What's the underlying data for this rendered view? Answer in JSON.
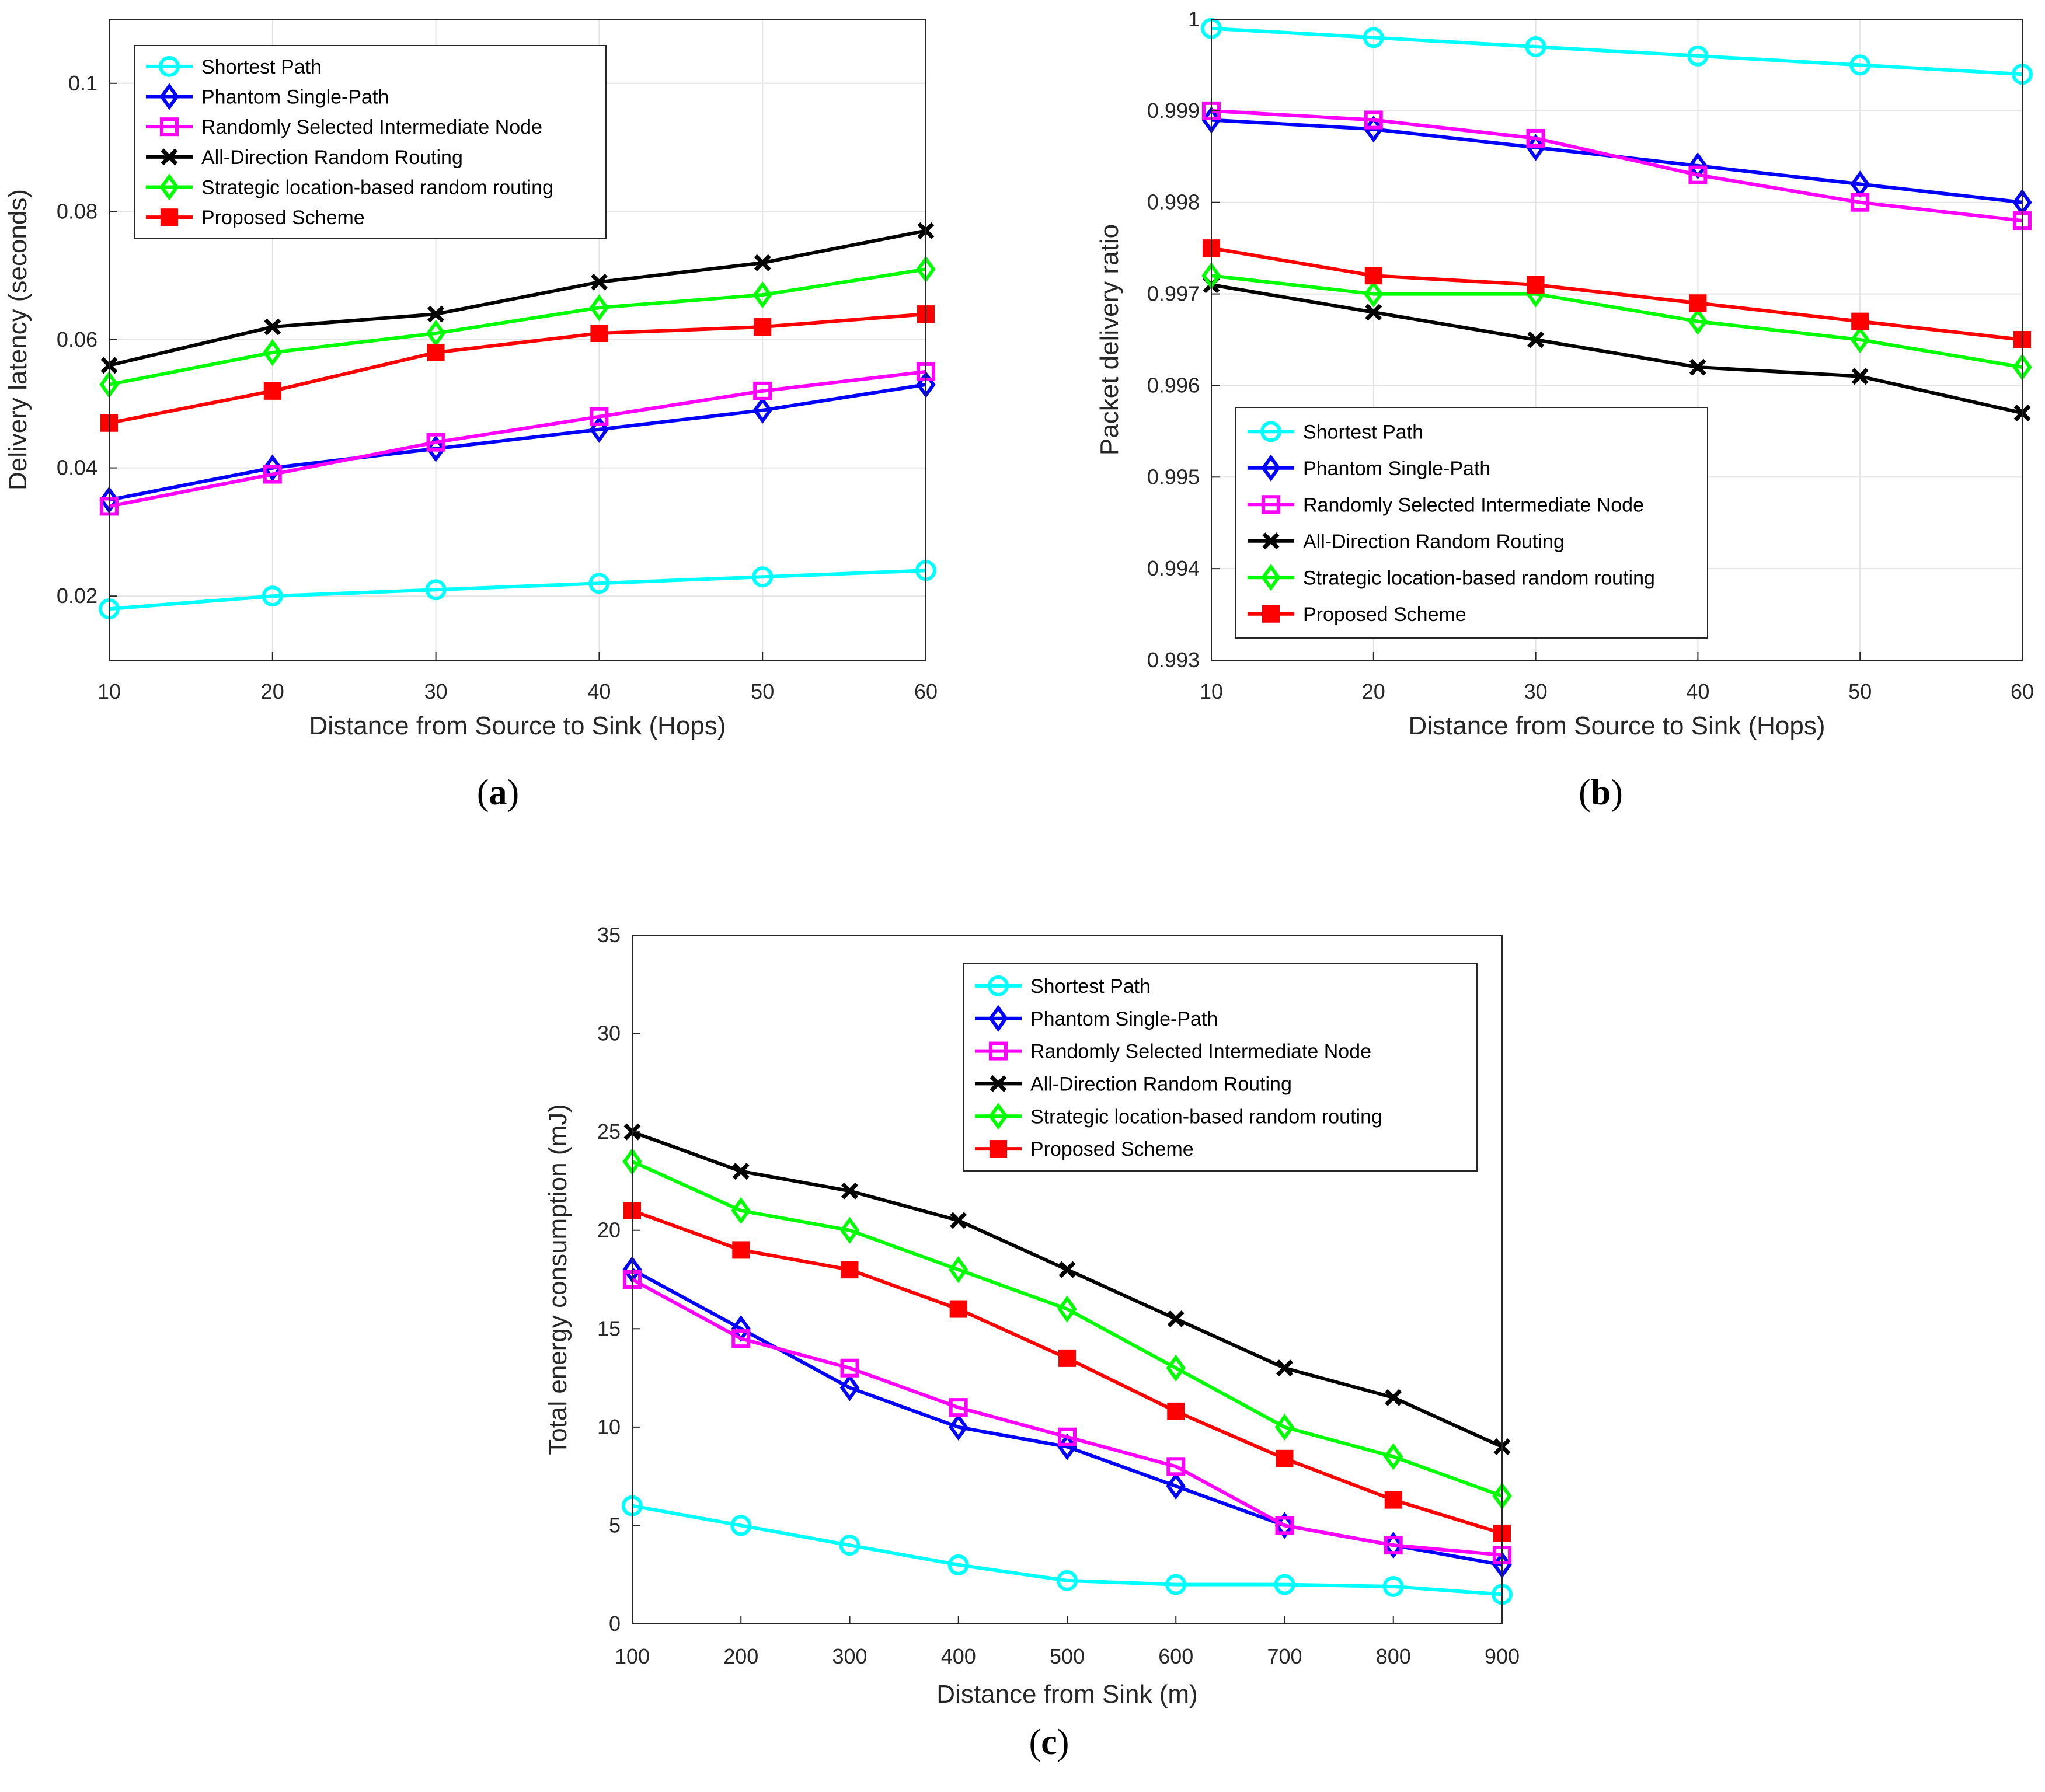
{
  "styles": {
    "Shortest Path": {
      "color": "#00ffff",
      "marker": "circle"
    },
    "Phantom Single-Path": {
      "color": "#0000ff",
      "marker": "diamond"
    },
    "Randomly Selected Intermediate Node": {
      "color": "#ff00ff",
      "marker": "square"
    },
    "All-Direction Random Routing": {
      "color": "#000000",
      "marker": "x"
    },
    "Strategic location-based random routing": {
      "color": "#00ff00",
      "marker": "diamond"
    },
    "Proposed Scheme": {
      "color": "#ff0000",
      "marker": "square-filled"
    }
  },
  "chart_data": [
    {
      "id": "a",
      "type": "line",
      "caption": "a",
      "xlabel": "Distance from Source to Sink (Hops)",
      "ylabel": "Delivery latency (seconds)",
      "x": [
        10,
        20,
        30,
        40,
        50,
        60
      ],
      "xlim": [
        10,
        60
      ],
      "ylim": [
        0.01,
        0.11
      ],
      "xticks": [
        10,
        20,
        30,
        40,
        50,
        60
      ],
      "yticks": [
        0.02,
        0.04,
        0.06,
        0.08,
        0.1
      ],
      "yticklabels": [
        "0.02",
        "0.04",
        "0.06",
        "0.08",
        "0.1"
      ],
      "grid": true,
      "legend_position": "top-left",
      "series": [
        {
          "name": "Shortest Path",
          "values": [
            0.018,
            0.02,
            0.021,
            0.022,
            0.023,
            0.024
          ]
        },
        {
          "name": "Phantom Single-Path",
          "values": [
            0.035,
            0.04,
            0.043,
            0.046,
            0.049,
            0.053
          ]
        },
        {
          "name": "Randomly Selected Intermediate Node",
          "values": [
            0.034,
            0.039,
            0.044,
            0.048,
            0.052,
            0.055
          ]
        },
        {
          "name": "All-Direction Random Routing",
          "values": [
            0.056,
            0.062,
            0.064,
            0.069,
            0.072,
            0.077
          ]
        },
        {
          "name": "Strategic location-based random routing",
          "values": [
            0.053,
            0.058,
            0.061,
            0.065,
            0.067,
            0.071
          ]
        },
        {
          "name": "Proposed Scheme",
          "values": [
            0.047,
            0.052,
            0.058,
            0.061,
            0.062,
            0.064
          ]
        }
      ]
    },
    {
      "id": "b",
      "type": "line",
      "caption": "b",
      "xlabel": "Distance from Source to Sink (Hops)",
      "ylabel": "Packet delivery ratio",
      "x": [
        10,
        20,
        30,
        40,
        50,
        60
      ],
      "xlim": [
        10,
        60
      ],
      "ylim": [
        0.993,
        1.0
      ],
      "xticks": [
        10,
        20,
        30,
        40,
        50,
        60
      ],
      "yticks": [
        0.993,
        0.994,
        0.995,
        0.996,
        0.997,
        0.998,
        0.999,
        1.0
      ],
      "yticklabels": [
        "0.993",
        "0.994",
        "0.995",
        "0.996",
        "0.997",
        "0.998",
        "0.999",
        "1"
      ],
      "grid": true,
      "legend_position": "bottom-left",
      "series": [
        {
          "name": "Shortest Path",
          "values": [
            0.9999,
            0.9998,
            0.9997,
            0.9996,
            0.9995,
            0.9994
          ]
        },
        {
          "name": "Phantom Single-Path",
          "values": [
            0.9989,
            0.9988,
            0.9986,
            0.9984,
            0.9982,
            0.998
          ]
        },
        {
          "name": "Randomly Selected Intermediate Node",
          "values": [
            0.999,
            0.9989,
            0.9987,
            0.9983,
            0.998,
            0.9978
          ]
        },
        {
          "name": "All-Direction Random Routing",
          "values": [
            0.9971,
            0.9968,
            0.9965,
            0.9962,
            0.9961,
            0.9957
          ]
        },
        {
          "name": "Strategic location-based random routing",
          "values": [
            0.9972,
            0.997,
            0.997,
            0.9967,
            0.9965,
            0.9962
          ]
        },
        {
          "name": "Proposed Scheme",
          "values": [
            0.9975,
            0.9972,
            0.9971,
            0.9969,
            0.9967,
            0.9965
          ]
        }
      ]
    },
    {
      "id": "c",
      "type": "line",
      "caption": "c",
      "xlabel": "Distance from Sink (m)",
      "ylabel": "Total energy consumption (mJ)",
      "x": [
        100,
        200,
        300,
        400,
        500,
        600,
        700,
        800,
        900
      ],
      "xlim": [
        100,
        900
      ],
      "ylim": [
        0,
        35
      ],
      "xticks": [
        100,
        200,
        300,
        400,
        500,
        600,
        700,
        800,
        900
      ],
      "yticks": [
        0,
        5,
        10,
        15,
        20,
        25,
        30,
        35
      ],
      "yticklabels": [
        "0",
        "5",
        "10",
        "15",
        "20",
        "25",
        "30",
        "35"
      ],
      "grid": false,
      "legend_position": "top-right",
      "series": [
        {
          "name": "Shortest Path",
          "values": [
            6,
            5,
            4,
            3,
            2.2,
            2,
            2,
            1.9,
            1.5
          ]
        },
        {
          "name": "Phantom Single-Path",
          "values": [
            18,
            15,
            12,
            10,
            9,
            7,
            5,
            4,
            3
          ]
        },
        {
          "name": "Randomly Selected Intermediate Node",
          "values": [
            17.5,
            14.5,
            13,
            11,
            9.5,
            8,
            5,
            4,
            3.5
          ]
        },
        {
          "name": "All-Direction Random Routing",
          "values": [
            25,
            23,
            22,
            20.5,
            18,
            15.5,
            13,
            11.5,
            9
          ]
        },
        {
          "name": "Strategic location-based random routing",
          "values": [
            23.5,
            21,
            20,
            18,
            16,
            13,
            10,
            8.5,
            6.5
          ]
        },
        {
          "name": "Proposed Scheme",
          "values": [
            21,
            19,
            18,
            16,
            13.5,
            10.8,
            8.4,
            6.3,
            4.6
          ]
        }
      ]
    }
  ]
}
